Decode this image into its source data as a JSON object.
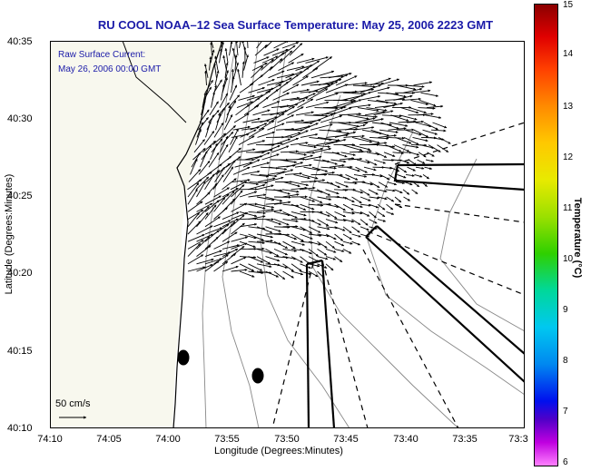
{
  "title": "RU COOL  NOAA–12  Sea Surface Temperature:  May 25, 2006 2223 GMT",
  "legend": {
    "line1": "Raw Surface Current:",
    "line2": "May 26, 2006 00:00 GMT"
  },
  "y_ticks": [
    "40:35",
    "40:30",
    "40:25",
    "40:20",
    "40:15",
    "40:10"
  ],
  "x_ticks": [
    "74:10",
    "74:05",
    "74:00",
    "73:55",
    "73:50",
    "73:45",
    "73:40",
    "73:35",
    "73:3"
  ],
  "xlabel": "Longitude (Degrees:Minutes)",
  "ylabel": "Latitude (Degrees:Minutes)",
  "scale_label": "50 cm/s",
  "colorbar": {
    "label": "Temperature (°C)",
    "ticks": [
      "15",
      "14",
      "13",
      "12",
      "11",
      "10",
      "9",
      "8",
      "7",
      "6"
    ]
  },
  "colors": {
    "title": "#1a1aa8",
    "land": "#f8f8ee",
    "coast": "#000000",
    "contour": "#888888"
  }
}
